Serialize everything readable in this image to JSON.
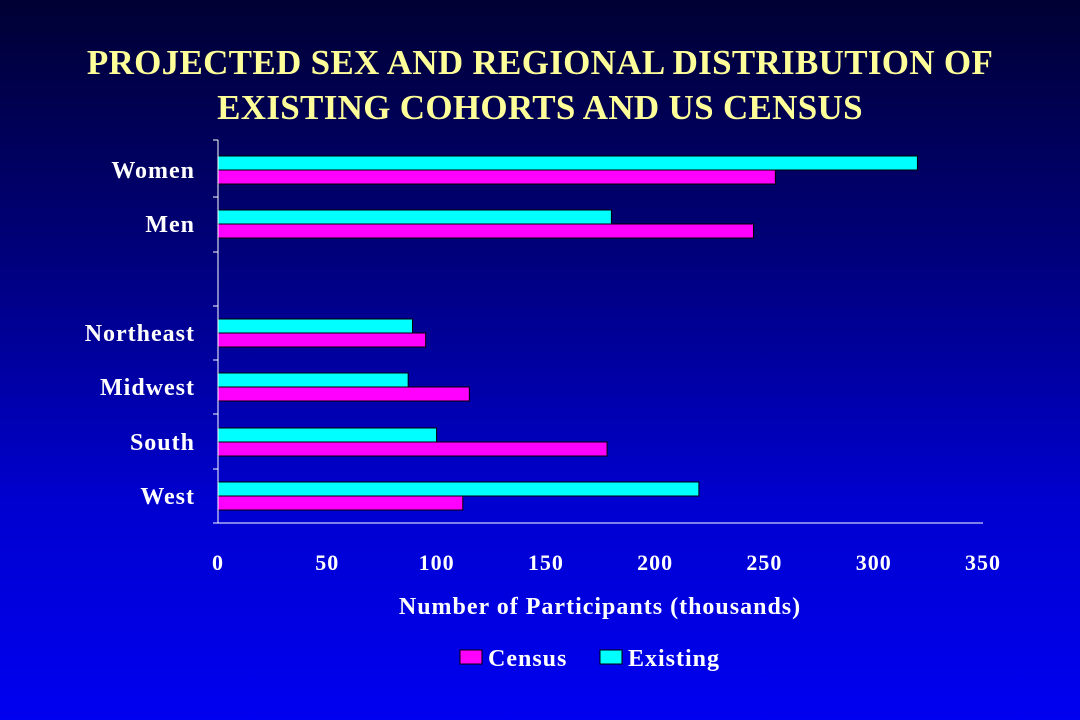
{
  "slide": {
    "title_line1": "PROJECTED SEX AND REGIONAL DISTRIBUTION OF",
    "title_line2": "EXISTING COHORTS AND US CENSUS"
  },
  "colors": {
    "title": "#ffff99",
    "census": "#ff00ff",
    "existing": "#00ffff",
    "axis": "#ffffff",
    "text": "#ffffff"
  },
  "chart_data": {
    "type": "bar",
    "orientation": "horizontal",
    "title": "PROJECTED SEX AND REGIONAL DISTRIBUTION OF EXISTING COHORTS AND US CENSUS",
    "categories": [
      "Women",
      "Men",
      "",
      "Northeast",
      "Midwest",
      "South",
      "West"
    ],
    "series": [
      {
        "name": "Census",
        "color": "#ff00ff",
        "values": [
          255,
          245,
          null,
          95,
          115,
          178,
          112
        ]
      },
      {
        "name": "Existing",
        "color": "#00ffff",
        "values": [
          320,
          180,
          null,
          89,
          87,
          100,
          220
        ]
      }
    ],
    "xlabel": "Number of Participants (thousands)",
    "ylabel": "",
    "xlim": [
      0,
      350
    ],
    "xticks": [
      "0",
      "50",
      "100",
      "150",
      "200",
      "250",
      "300",
      "350"
    ],
    "grid": false,
    "legend": {
      "position": "bottom",
      "entries": [
        "Census",
        "Existing"
      ]
    }
  }
}
